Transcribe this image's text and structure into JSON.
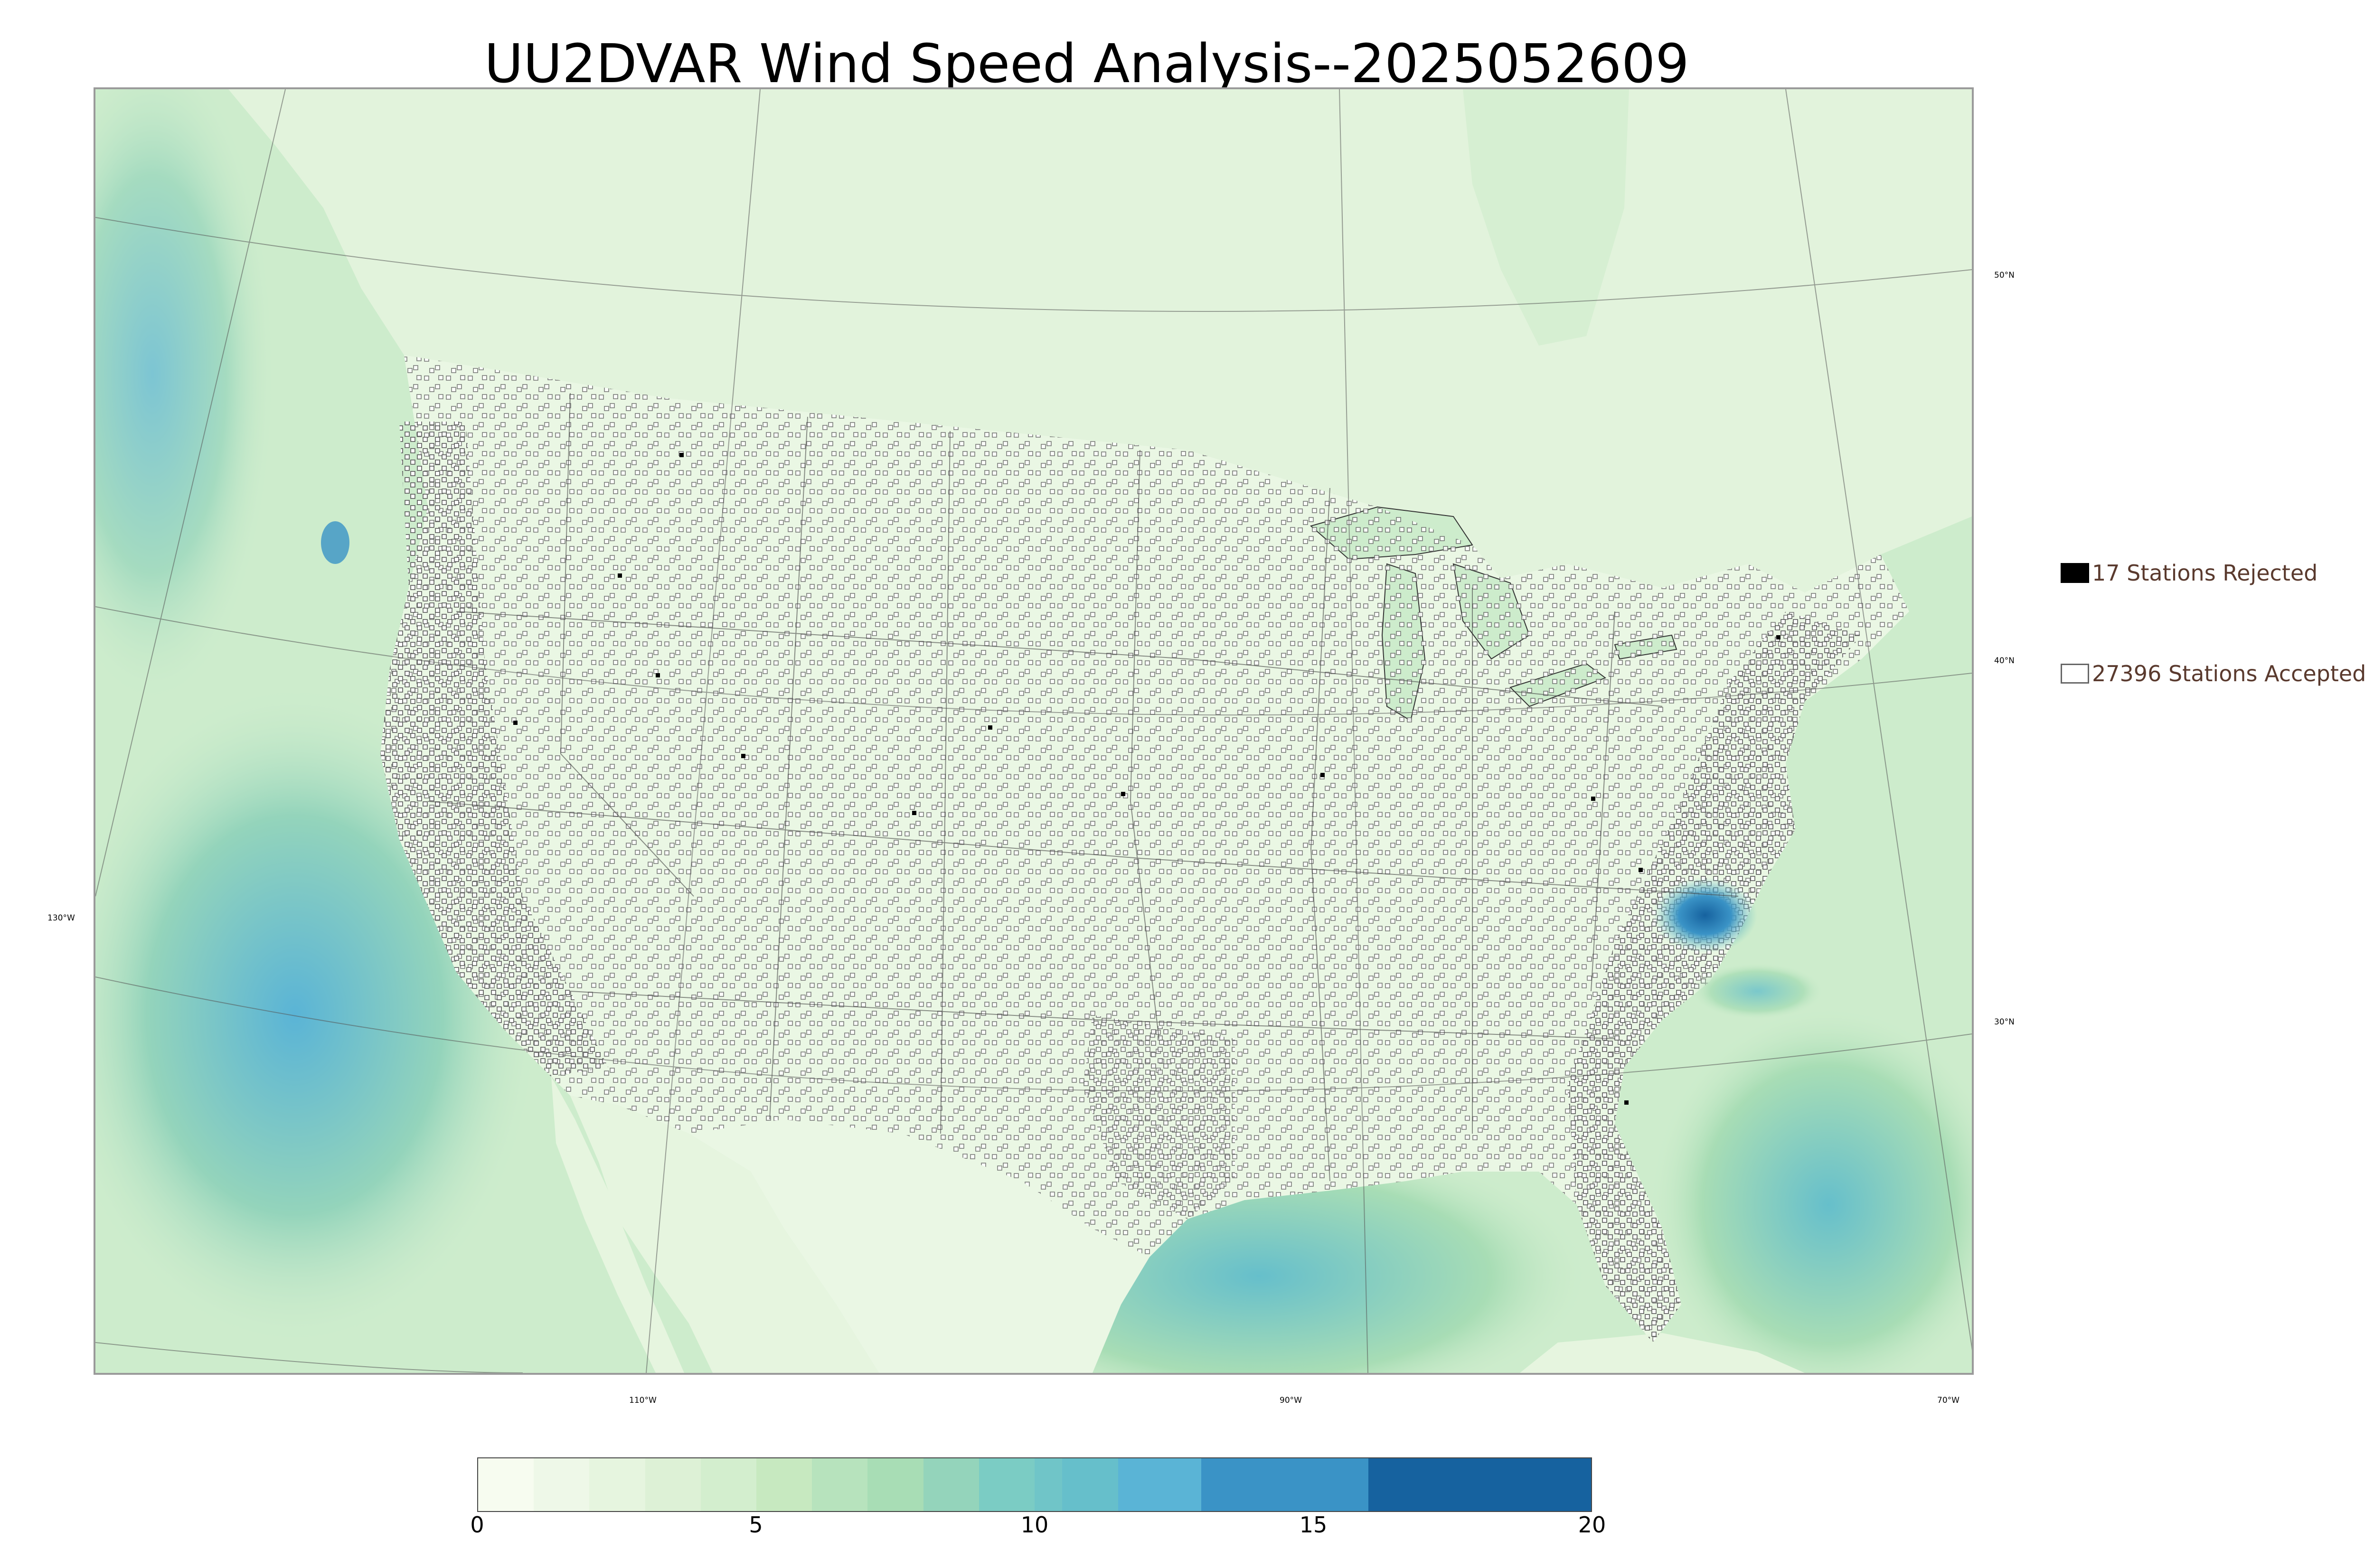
{
  "title": "UU2DVAR Wind Speed Analysis--2025052609",
  "map": {
    "longitude_labels": [
      "130°W",
      "110°W",
      "90°W",
      "70°W"
    ],
    "latitude_labels": [
      "50°N",
      "40°N",
      "30°N"
    ],
    "colors": {
      "land_base": "#e6f5e1",
      "ocean_base": "#cdeccc",
      "high_wind": "#2f7fbf",
      "coastline": "#222222",
      "station_outline": "#555555"
    }
  },
  "legend": {
    "rejected_label": "17 Stations Rejected",
    "accepted_label": "27396 Stations Accepted",
    "rejected_count": 17,
    "accepted_count": 27396
  },
  "colorbar": {
    "ticks": [
      "0",
      "5",
      "10",
      "15",
      "20"
    ],
    "min": 0,
    "max": 20,
    "bins": [
      {
        "from": 0,
        "to": 1,
        "color": "#f7fcf0"
      },
      {
        "from": 1,
        "to": 2,
        "color": "#eef8e8"
      },
      {
        "from": 2,
        "to": 3,
        "color": "#e6f5df"
      },
      {
        "from": 3,
        "to": 4,
        "color": "#ddf1d6"
      },
      {
        "from": 4,
        "to": 5,
        "color": "#d3eece"
      },
      {
        "from": 5,
        "to": 6,
        "color": "#c7e9c0"
      },
      {
        "from": 6,
        "to": 7,
        "color": "#b7e3bd"
      },
      {
        "from": 7,
        "to": 8,
        "color": "#a8ddb5"
      },
      {
        "from": 8,
        "to": 9,
        "color": "#94d4bb"
      },
      {
        "from": 9,
        "to": 10,
        "color": "#7bccc4"
      },
      {
        "from": 10,
        "to": 10.5,
        "color": "#70c5c8"
      },
      {
        "from": 10.5,
        "to": 11.5,
        "color": "#66bfcb"
      },
      {
        "from": 11.5,
        "to": 13,
        "color": "#5ab4d6"
      },
      {
        "from": 13,
        "to": 16,
        "color": "#3a93c6"
      },
      {
        "from": 16,
        "to": 20,
        "color": "#16629f"
      }
    ]
  }
}
